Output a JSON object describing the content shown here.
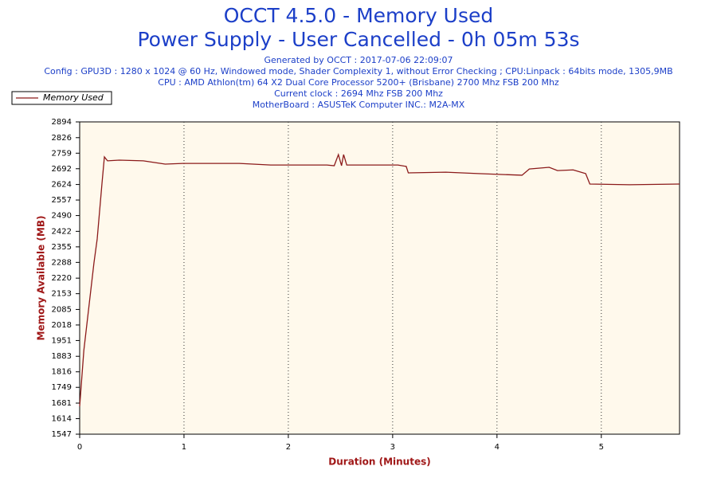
{
  "chart_data": {
    "type": "line",
    "title": [
      "OCCT 4.5.0 - Memory Used",
      "Power Supply - User Cancelled - 0h 05m 53s"
    ],
    "subtitle": [
      "Generated by OCCT : 2017-07-06 22:09:07",
      "Config : GPU3D : 1280 x 1024 @ 60 Hz, Windowed mode, Shader Complexity 1, without Error Checking ; CPU:Linpack : 64bits mode, 1305,9MB",
      "CPU : AMD Athlon(tm) 64 X2 Dual Core Processor 5200+ (Brisbane) 2700 Mhz FSB 200 Mhz",
      "Current clock : 2694 Mhz FSB 200 Mhz",
      "MotherBoard : ASUSTeK Computer INC.: M2A-MX"
    ],
    "x_label": "Duration (Minutes)",
    "y_label": "Memory Available (MB)",
    "x": [
      0,
      0.04,
      0.137,
      0.168,
      0.214,
      0.237,
      0.267,
      0.38,
      0.61,
      0.82,
      0.99,
      1.53,
      1.83,
      2.0,
      2.37,
      2.44,
      2.48,
      2.51,
      2.53,
      2.56,
      3.05,
      3.13,
      3.15,
      3.51,
      3.82,
      4.24,
      4.31,
      4.5,
      4.58,
      4.73,
      4.85,
      4.89,
      5.27,
      5.75
    ],
    "series": [
      {
        "name": "Memory Used",
        "color": "#8b1a1a",
        "values": [
          1667,
          1908,
          2286,
          2389,
          2629,
          2743,
          2726,
          2729,
          2726,
          2712,
          2715,
          2715,
          2708,
          2708,
          2708,
          2705,
          2753,
          2705,
          2753,
          2708,
          2708,
          2702,
          2674,
          2677,
          2671,
          2664,
          2691,
          2698,
          2684,
          2687,
          2671,
          2626,
          2623,
          2626
        ]
      }
    ],
    "xlim": [
      0,
      5.75
    ],
    "xticks": [
      0,
      1,
      2,
      3,
      4,
      5
    ],
    "ylim": [
      1547,
      2894
    ],
    "yticks": [
      1547,
      1614,
      1681,
      1749,
      1816,
      1883,
      1951,
      2018,
      2085,
      2153,
      2220,
      2288,
      2355,
      2422,
      2490,
      2557,
      2624,
      2692,
      2759,
      2826,
      2894
    ],
    "grid": "x",
    "legend": "top-left",
    "plot_background": "#fff9ec"
  }
}
